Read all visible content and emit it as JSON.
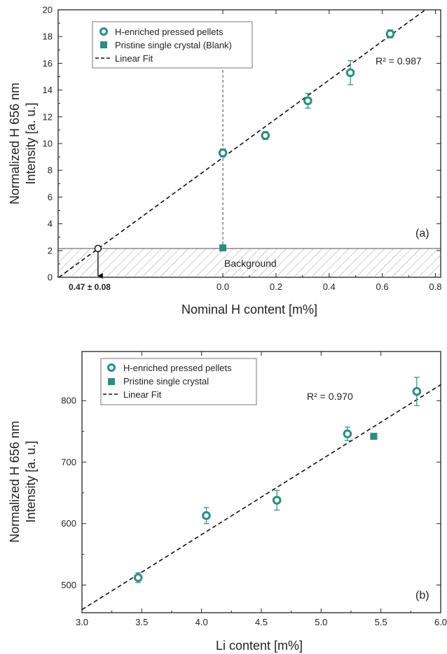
{
  "colors": {
    "marker": "#2e8b84",
    "axis": "#222222",
    "fit": "#111111",
    "background_hatch": "#9a9a9a"
  },
  "chart_data": [
    {
      "type": "scatter",
      "panel_label": "(a)",
      "xlabel": "Nominal H content [m%]",
      "ylabel_line1": "Normalized H 656 nm",
      "ylabel_line2": "Intensity [a. u.]",
      "xlim": [
        -0.62,
        0.82
      ],
      "ylim": [
        0,
        20
      ],
      "xticks": [
        0.0,
        0.2,
        0.4,
        0.6,
        0.8
      ],
      "xtick_labels": [
        "0.0",
        "0.2",
        "0.4",
        "0.6",
        "0.8"
      ],
      "yticks": [
        0,
        2,
        4,
        6,
        8,
        10,
        12,
        14,
        16,
        18,
        20
      ],
      "ytick_labels": [
        "0",
        "2",
        "4",
        "6",
        "8",
        "10",
        "12",
        "14",
        "16",
        "18",
        "20"
      ],
      "legend": {
        "position": "top-left",
        "entries": [
          "H-enriched pressed pellets",
          "Pristine single crystal (Blank)",
          "Linear Fit"
        ]
      },
      "r_squared": "R² = 0.987",
      "series": [
        {
          "name": "H-enriched pressed pellets",
          "marker": "open-circle",
          "x": [
            0.0,
            0.16,
            0.32,
            0.48,
            0.63
          ],
          "y": [
            9.3,
            10.6,
            13.2,
            15.3,
            18.2
          ],
          "yerr": [
            0.3,
            0.3,
            0.55,
            0.9,
            0.3
          ]
        },
        {
          "name": "Pristine single crystal (Blank)",
          "marker": "filled-square",
          "x": [
            0.0
          ],
          "y": [
            2.2
          ],
          "yerr": [
            0
          ]
        }
      ],
      "fit": {
        "name": "Linear Fit",
        "slope": 14.5,
        "intercept": 8.95,
        "x_range": [
          -0.62,
          0.82
        ]
      },
      "background": {
        "label": "Background",
        "y_level": 2.15
      },
      "blank_guide": {
        "x": 0.0,
        "y_range": [
          2.2,
          15.5
        ]
      },
      "intercept_point": {
        "x": -0.47,
        "y": 2.15,
        "label": "0.47 ± 0.08"
      }
    },
    {
      "type": "scatter",
      "panel_label": "(b)",
      "xlabel": "Li content [m%]",
      "ylabel_line1": "Normalized H 656 nm",
      "ylabel_line2": "Intensity [a. u.]",
      "xlim": [
        3.0,
        6.0
      ],
      "ylim": [
        455,
        880
      ],
      "xticks": [
        3.0,
        3.5,
        4.0,
        4.5,
        5.0,
        5.5,
        6.0
      ],
      "xtick_labels": [
        "3.0",
        "3.5",
        "4.0",
        "4.5",
        "5.0",
        "5.5",
        "6.0"
      ],
      "yticks": [
        500,
        600,
        700,
        800
      ],
      "ytick_labels": [
        "500",
        "600",
        "700",
        "800"
      ],
      "legend": {
        "position": "top-left",
        "entries": [
          "H-enriched pressed pellets",
          "Pristine single crystal",
          "Linear Fit"
        ]
      },
      "r_squared": "R² = 0.970",
      "series": [
        {
          "name": "H-enriched pressed pellets",
          "marker": "open-circle",
          "x": [
            3.47,
            4.04,
            4.63,
            5.22,
            5.8
          ],
          "y": [
            512,
            613,
            638,
            746,
            815
          ],
          "yerr": [
            8,
            13,
            16,
            11,
            23
          ]
        },
        {
          "name": "Pristine single crystal",
          "marker": "filled-square",
          "x": [
            5.44
          ],
          "y": [
            742
          ],
          "yerr": [
            0
          ]
        }
      ],
      "fit": {
        "name": "Linear Fit",
        "slope": 122,
        "intercept": 94,
        "x_range": [
          3.0,
          6.0
        ]
      }
    }
  ]
}
